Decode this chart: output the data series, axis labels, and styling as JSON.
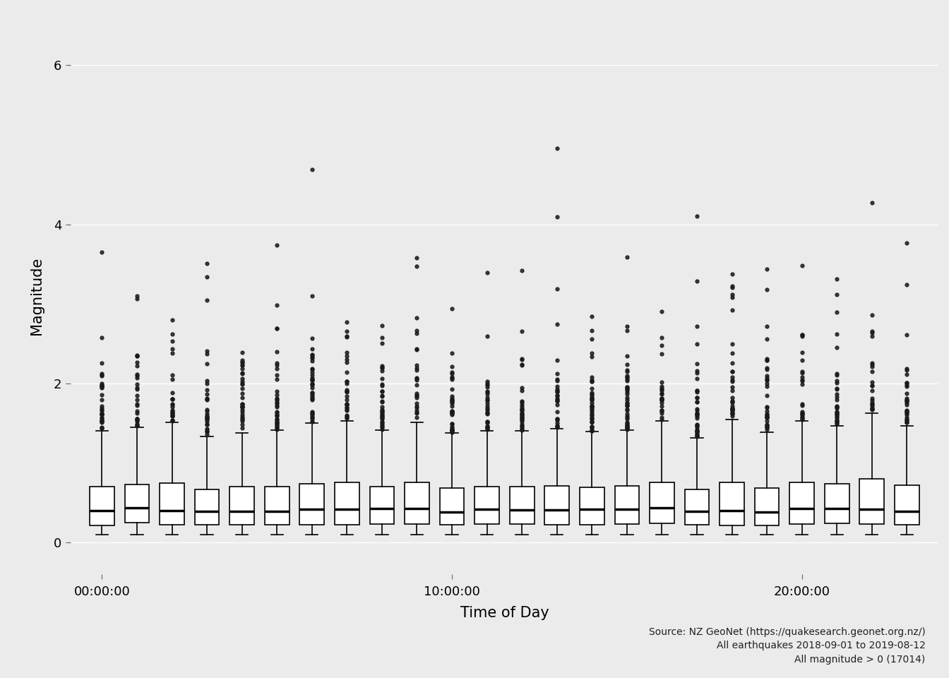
{
  "title": "",
  "xlabel": "Time of Day",
  "ylabel": "Magnitude",
  "background_color": "#EBEBEB",
  "panel_background": "#EBEBEB",
  "grid_color": "#FFFFFF",
  "ylim": [
    -0.4,
    6.6
  ],
  "yticks": [
    0,
    2,
    4,
    6
  ],
  "ytick_labels": [
    "0",
    "2",
    "4",
    "6"
  ],
  "xtick_labels": [
    "00:00:00",
    "10:00:00",
    "20:00:00"
  ],
  "xtick_positions": [
    0,
    10,
    20
  ],
  "n_hours": 24,
  "source_text": "Source: NZ GeoNet (https://quakesearch.geonet.org.nz/)\nAll earthquakes 2018-09-01 to 2019-08-12\nAll magnitude > 0 (17014)",
  "seed": 42,
  "total_quakes": 17014
}
